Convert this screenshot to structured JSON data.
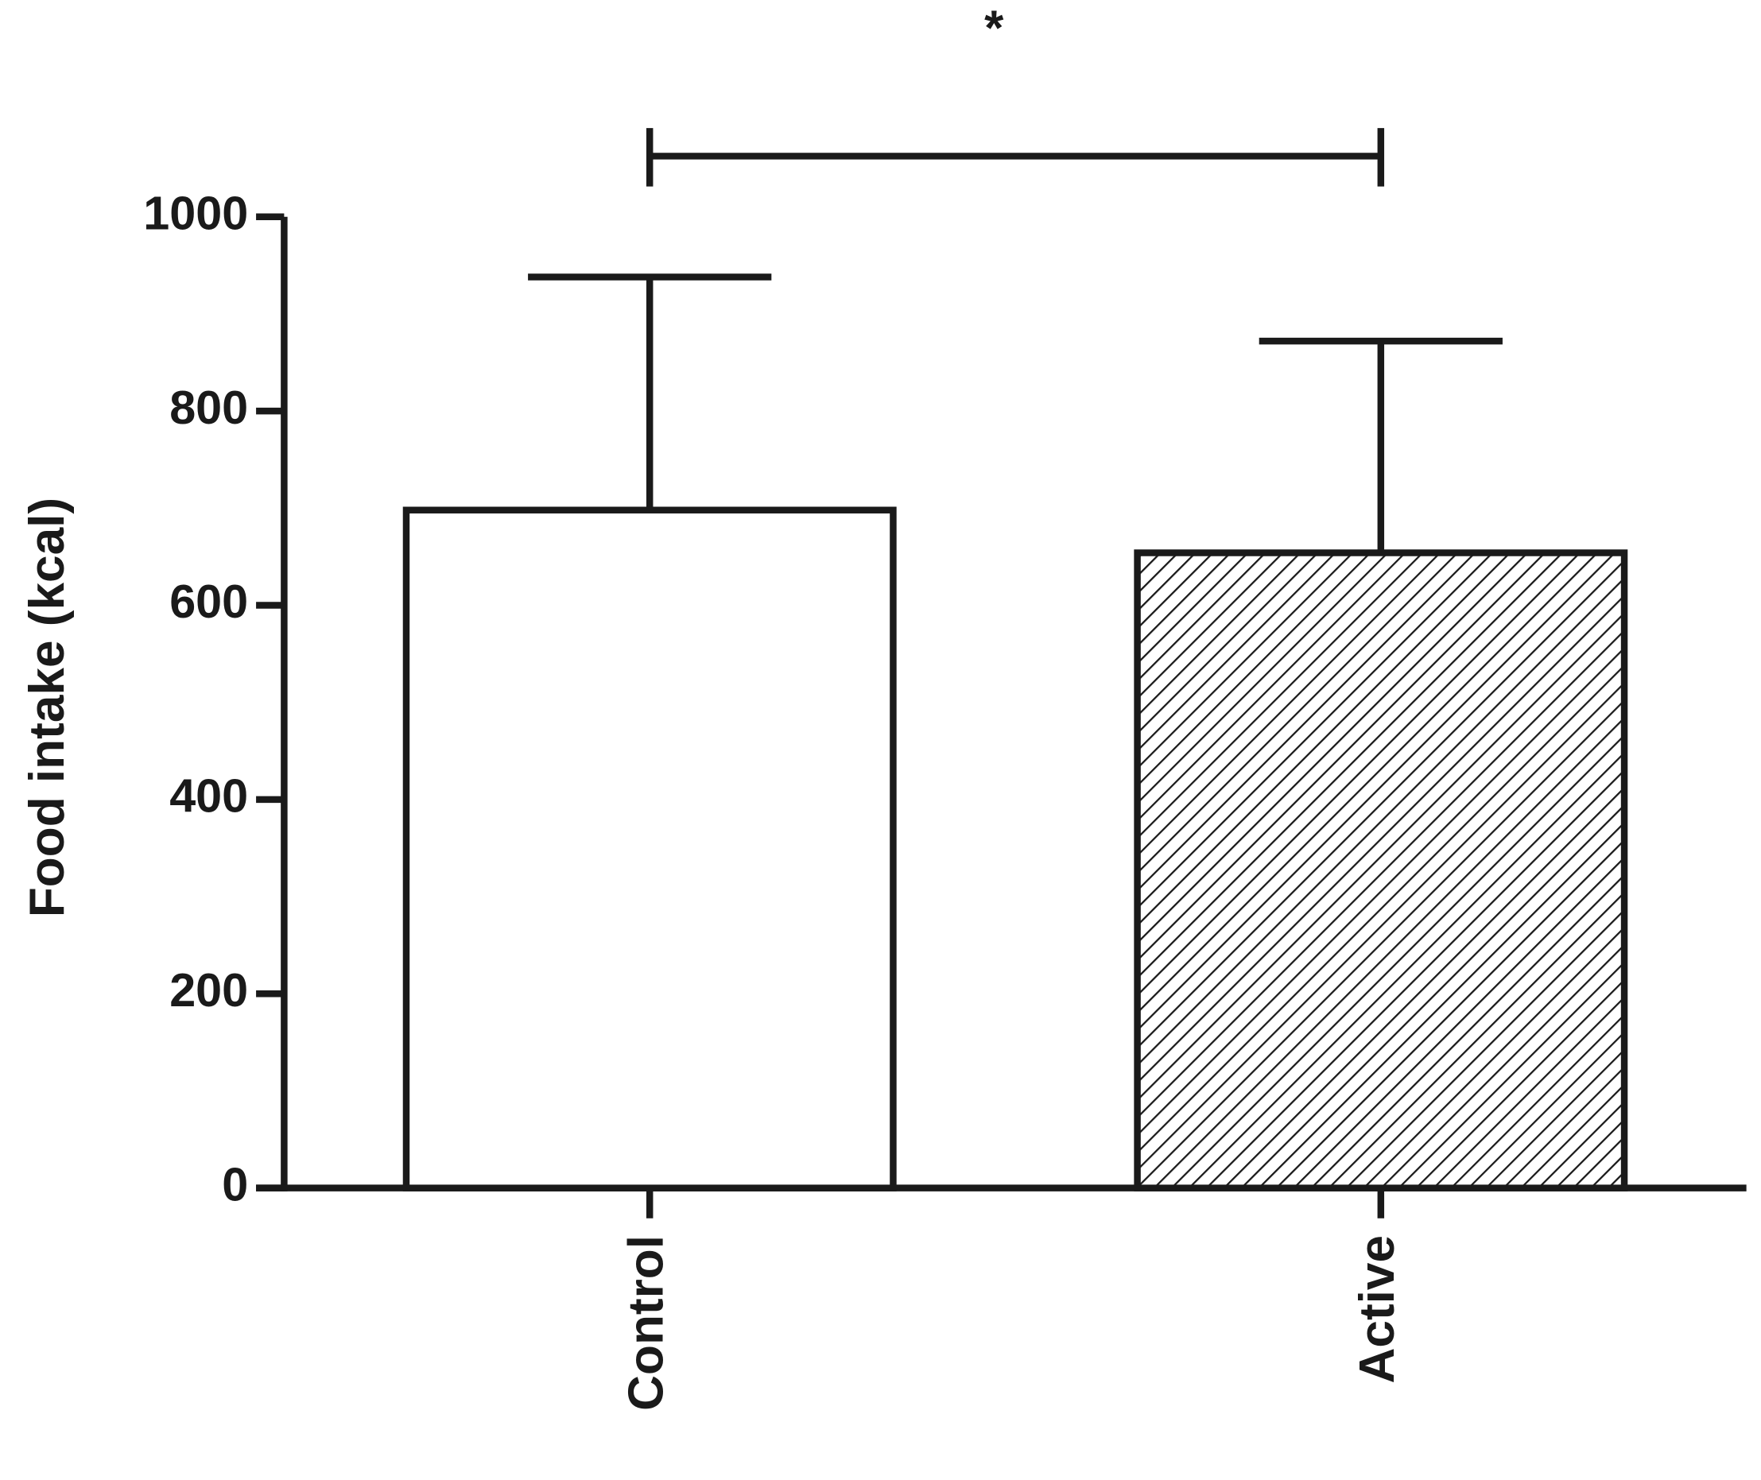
{
  "chart_data": {
    "type": "bar",
    "y_label": "Food intake (kcal)",
    "annotation": "*",
    "categories": [
      "Control",
      "Active"
    ],
    "values": [
      698,
      654
    ],
    "errors": [
      240,
      218
    ],
    "patterns": [
      "none",
      "hatch"
    ],
    "color": "#1a1a1a",
    "ylim": [
      0,
      1000
    ],
    "yticks": [
      0,
      200,
      400,
      600,
      800,
      1000
    ],
    "grid": false
  }
}
